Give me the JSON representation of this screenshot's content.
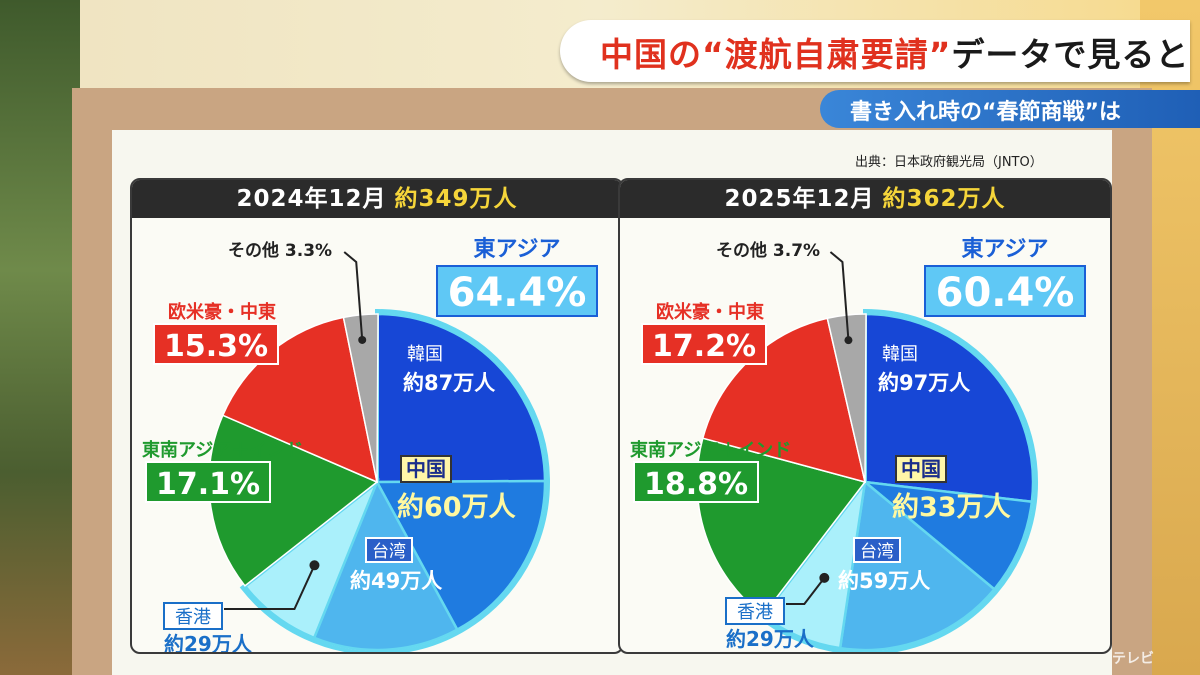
{
  "banner": {
    "title_prefix": "中国の",
    "title_highlight": "“渡航自粛要請”",
    "title_suffix": "データで見ると",
    "subtitle": "書き入れ時の“春節商戦”は"
  },
  "source": "出典：日本政府観光局（JNTO）",
  "watermark": "テレビ",
  "colors": {
    "east_asia": "#1747d6",
    "china": "#1f7be0",
    "taiwan": "#4fb6ee",
    "hongkong": "#aaf0fb",
    "sea_india": "#1f9a2e",
    "western": "#e63025",
    "other": "#a8a8a8",
    "highlight_border": "#64d8f0"
  },
  "chart_data": [
    {
      "type": "pie",
      "title": "2024年12月",
      "total": "約349万人",
      "slices": [
        {
          "name": "東アジア",
          "value": 64.4,
          "label": "64.4%",
          "sub": [
            {
              "name": "韓国",
              "label": "約87万人"
            },
            {
              "name": "中国",
              "label": "約60万人"
            },
            {
              "name": "台湾",
              "label": "約49万人"
            },
            {
              "name": "香港",
              "label": "約29万人"
            }
          ]
        },
        {
          "name": "東南アジア＋インド",
          "value": 17.1,
          "label": "17.1%"
        },
        {
          "name": "欧米豪・中東",
          "value": 15.3,
          "label": "15.3%"
        },
        {
          "name": "その他",
          "value": 3.3,
          "label": "3.3%"
        }
      ],
      "east_asia_breakdown": [
        87,
        60,
        49,
        29
      ]
    },
    {
      "type": "pie",
      "title": "2025年12月",
      "total": "約362万人",
      "slices": [
        {
          "name": "東アジア",
          "value": 60.4,
          "label": "60.4%",
          "sub": [
            {
              "name": "韓国",
              "label": "約97万人"
            },
            {
              "name": "中国",
              "label": "約33万人"
            },
            {
              "name": "台湾",
              "label": "約59万人"
            },
            {
              "name": "香港",
              "label": "約29万人"
            }
          ]
        },
        {
          "name": "東南アジア＋インド",
          "value": 18.8,
          "label": "18.8%"
        },
        {
          "name": "欧米豪・中東",
          "value": 17.2,
          "label": "17.2%"
        },
        {
          "name": "その他",
          "value": 3.7,
          "label": "3.7%"
        }
      ],
      "east_asia_breakdown": [
        97,
        33,
        59,
        29
      ]
    }
  ]
}
